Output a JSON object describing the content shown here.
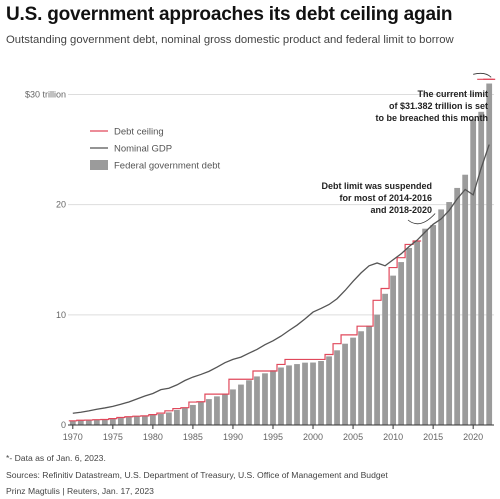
{
  "title": "U.S. government approaches its debt ceiling again",
  "subtitle": "Outstanding government debt, nominal gross domestic product and federal limit to borrow",
  "footnote": "*- Data as of Jan. 6, 2023.",
  "sources": "Sources: Refinitiv Datastream, U.S. Department of Treasury, U.S. Office of Management and Budget",
  "credit": "Prinz Magtulis | Reuters, Jan. 17, 2023",
  "colors": {
    "debt": "#9b9b9b",
    "gdp": "#555555",
    "ceiling": "#e0485b"
  },
  "chart_data": {
    "type": "bar",
    "xlabel": "",
    "ylabel": "",
    "ylim": [
      0,
      31.5
    ],
    "xlim": [
      1969.4,
      2022.6
    ],
    "grid": true,
    "legend_position": "top-left",
    "y_ticks": [
      {
        "value": 0,
        "label": "0"
      },
      {
        "value": 10,
        "label": "10"
      },
      {
        "value": 20,
        "label": "20"
      },
      {
        "value": 30,
        "label": "$30 trillion"
      }
    ],
    "x_ticks": [
      1970,
      1975,
      1980,
      1985,
      1990,
      1995,
      2000,
      2005,
      2010,
      2015,
      2020
    ],
    "legend": [
      "Debt ceiling",
      "Nominal GDP",
      "Federal government debt"
    ],
    "years": [
      1970,
      1971,
      1972,
      1973,
      1974,
      1975,
      1976,
      1977,
      1978,
      1979,
      1980,
      1981,
      1982,
      1983,
      1984,
      1985,
      1986,
      1987,
      1988,
      1989,
      1990,
      1991,
      1992,
      1993,
      1994,
      1995,
      1996,
      1997,
      1998,
      1999,
      2000,
      2001,
      2002,
      2003,
      2004,
      2005,
      2006,
      2007,
      2008,
      2009,
      2010,
      2011,
      2012,
      2013,
      2014,
      2015,
      2016,
      2017,
      2018,
      2019,
      2020,
      2021,
      2022
    ],
    "series": [
      {
        "name": "Federal government debt",
        "type": "bar",
        "values": [
          0.38,
          0.41,
          0.44,
          0.47,
          0.49,
          0.54,
          0.63,
          0.71,
          0.78,
          0.83,
          0.91,
          1.0,
          1.14,
          1.37,
          1.56,
          1.82,
          2.13,
          2.35,
          2.6,
          2.86,
          3.23,
          3.67,
          4.06,
          4.41,
          4.69,
          4.97,
          5.22,
          5.41,
          5.53,
          5.66,
          5.67,
          5.81,
          6.23,
          6.78,
          7.38,
          7.93,
          8.51,
          9.01,
          10.02,
          11.91,
          13.56,
          14.79,
          16.07,
          16.74,
          17.82,
          18.15,
          19.57,
          20.24,
          21.52,
          22.72,
          27.75,
          28.43,
          31.0
        ]
      },
      {
        "name": "Nominal GDP",
        "type": "line",
        "values": [
          1.07,
          1.16,
          1.28,
          1.43,
          1.55,
          1.69,
          1.88,
          2.09,
          2.36,
          2.63,
          2.86,
          3.21,
          3.34,
          3.64,
          4.04,
          4.35,
          4.59,
          4.87,
          5.25,
          5.66,
          5.96,
          6.16,
          6.52,
          6.86,
          7.29,
          7.64,
          8.07,
          8.58,
          9.06,
          9.63,
          10.25,
          10.58,
          10.94,
          11.46,
          12.21,
          13.04,
          13.81,
          14.45,
          14.71,
          14.45,
          15.0,
          15.54,
          16.2,
          16.78,
          17.52,
          18.22,
          18.71,
          19.48,
          20.53,
          21.38,
          20.89,
          23.32,
          25.46
        ]
      },
      {
        "name": "Debt ceiling",
        "type": "step",
        "values": [
          0.38,
          0.43,
          0.45,
          0.48,
          0.5,
          0.58,
          0.68,
          0.75,
          0.8,
          0.83,
          0.94,
          1.08,
          1.29,
          1.49,
          1.57,
          2.08,
          2.11,
          2.8,
          2.8,
          2.8,
          4.15,
          4.15,
          4.15,
          4.9,
          4.9,
          4.9,
          5.5,
          5.95,
          5.95,
          5.95,
          5.95,
          5.95,
          6.4,
          7.38,
          8.18,
          8.18,
          8.97,
          8.97,
          11.32,
          12.39,
          14.29,
          15.19,
          16.39,
          16.7,
          null,
          null,
          null,
          null,
          null,
          null,
          null,
          31.38,
          31.38
        ]
      }
    ],
    "annotations": [
      "The current limit",
      "of $31.382 trillion is set",
      "to be breached this month",
      "Debt limit was suspended",
      "for most of 2014-2016",
      "and 2018-2020"
    ]
  }
}
